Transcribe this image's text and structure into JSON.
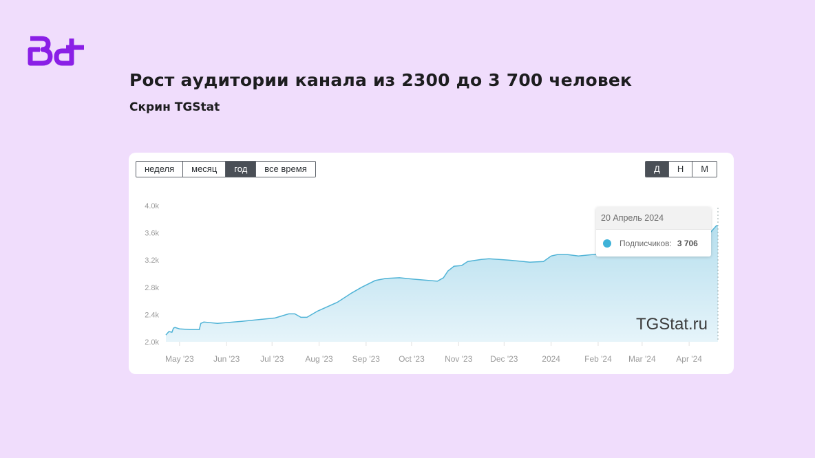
{
  "logo": {
    "text": "Bd",
    "color": "#8a1fe6"
  },
  "header": {
    "title": "Рост аудитории канала из 2300 до 3 700 человек",
    "subtitle": "Скрин TGStat"
  },
  "period_buttons": [
    {
      "label": "неделя",
      "active": false
    },
    {
      "label": "месяц",
      "active": false
    },
    {
      "label": "год",
      "active": true
    },
    {
      "label": "все время",
      "active": false
    }
  ],
  "granularity_buttons": [
    {
      "label": "Д",
      "active": true
    },
    {
      "label": "Н",
      "active": false
    },
    {
      "label": "М",
      "active": false
    }
  ],
  "tooltip": {
    "date": "20 Апрель 2024",
    "label": "Подписчиков:",
    "value": "3 706"
  },
  "watermark": "TGStat.ru",
  "chart_data": {
    "type": "area",
    "xlabel": "",
    "ylabel": "",
    "ylim": [
      2000,
      4000
    ],
    "xlim": [
      "2023-04-22",
      "2024-04-20"
    ],
    "yticks": [
      "2.0k",
      "2.4k",
      "2.8k",
      "3.2k",
      "3.6k",
      "4.0k"
    ],
    "ytick_values": [
      2000,
      2400,
      2800,
      3200,
      3600,
      4000
    ],
    "xticks": [
      {
        "label": "May '23",
        "date": "2023-05-01"
      },
      {
        "label": "Jun '23",
        "date": "2023-06-01"
      },
      {
        "label": "Jul '23",
        "date": "2023-07-01"
      },
      {
        "label": "Aug '23",
        "date": "2023-08-01"
      },
      {
        "label": "Sep '23",
        "date": "2023-09-01"
      },
      {
        "label": "Oct '23",
        "date": "2023-10-01"
      },
      {
        "label": "Nov '23",
        "date": "2023-11-01"
      },
      {
        "label": "Dec '23",
        "date": "2023-12-01"
      },
      {
        "label": "2024",
        "date": "2024-01-01"
      },
      {
        "label": "Feb '24",
        "date": "2024-02-01"
      },
      {
        "label": "Mar '24",
        "date": "2024-03-01"
      },
      {
        "label": "Apr '24",
        "date": "2024-04-01"
      }
    ],
    "line_color": "#4fb3d6",
    "grid": false,
    "series": [
      {
        "points": [
          [
            "2023-04-22",
            2100
          ],
          [
            "2023-04-24",
            2150
          ],
          [
            "2023-04-26",
            2140
          ],
          [
            "2023-04-27",
            2200
          ],
          [
            "2023-04-28",
            2210
          ],
          [
            "2023-05-01",
            2190
          ],
          [
            "2023-05-08",
            2180
          ],
          [
            "2023-05-14",
            2180
          ],
          [
            "2023-05-15",
            2270
          ],
          [
            "2023-05-17",
            2290
          ],
          [
            "2023-05-26",
            2270
          ],
          [
            "2023-06-11",
            2300
          ],
          [
            "2023-07-03",
            2350
          ],
          [
            "2023-07-12",
            2410
          ],
          [
            "2023-07-16",
            2410
          ],
          [
            "2023-07-20",
            2360
          ],
          [
            "2023-07-24",
            2360
          ],
          [
            "2023-07-31",
            2450
          ],
          [
            "2023-08-13",
            2580
          ],
          [
            "2023-08-22",
            2710
          ],
          [
            "2023-08-29",
            2800
          ],
          [
            "2023-09-07",
            2900
          ],
          [
            "2023-09-14",
            2930
          ],
          [
            "2023-09-23",
            2940
          ],
          [
            "2023-10-02",
            2920
          ],
          [
            "2023-10-18",
            2890
          ],
          [
            "2023-10-22",
            2940
          ],
          [
            "2023-10-25",
            3040
          ],
          [
            "2023-10-29",
            3110
          ],
          [
            "2023-11-03",
            3120
          ],
          [
            "2023-11-07",
            3180
          ],
          [
            "2023-11-16",
            3210
          ],
          [
            "2023-11-21",
            3220
          ],
          [
            "2023-12-04",
            3200
          ],
          [
            "2023-12-18",
            3170
          ],
          [
            "2023-12-27",
            3180
          ],
          [
            "2024-01-01",
            3260
          ],
          [
            "2024-01-05",
            3280
          ],
          [
            "2024-01-12",
            3280
          ],
          [
            "2024-01-19",
            3260
          ],
          [
            "2024-01-28",
            3280
          ],
          [
            "2024-02-15",
            3320
          ],
          [
            "2024-03-13",
            3380
          ],
          [
            "2024-03-31",
            3460
          ],
          [
            "2024-04-14",
            3580
          ],
          [
            "2024-04-19",
            3706
          ],
          [
            "2024-04-20",
            3706
          ]
        ]
      }
    ]
  }
}
